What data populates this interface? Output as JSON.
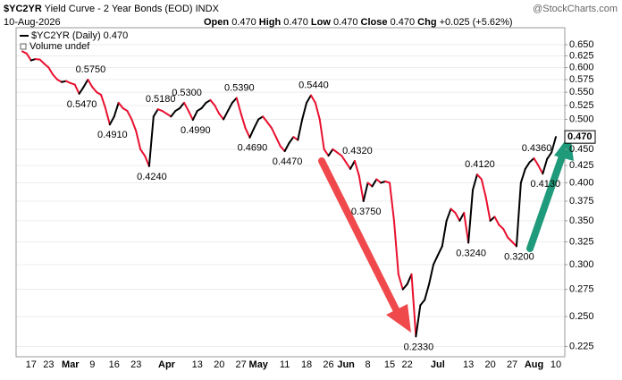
{
  "chart_data": {
    "type": "line",
    "symbol": "$YC2YR",
    "title": "Yield Curve - 2 Year Bonds (EOD)",
    "exchange": "INDX",
    "date": "10-Aug-2026",
    "watermark": "@StockCharts.com",
    "ohlc": [
      {
        "label": "Open",
        "value": "0.470"
      },
      {
        "label": "High",
        "value": "0.470"
      },
      {
        "label": "Low",
        "value": "0.470"
      },
      {
        "label": "Close",
        "value": "0.470"
      },
      {
        "label": "Chg",
        "value": "+0.025 (+5.62%)"
      }
    ],
    "volume_note": "Volume undef",
    "last_value_label": "0.470",
    "log_scale": true,
    "grid": true,
    "ylim": [
      0.217,
      0.69
    ],
    "yticks": [
      {
        "value": 0.225,
        "label": "0.225"
      },
      {
        "value": 0.25,
        "label": "0.250"
      },
      {
        "value": 0.275,
        "label": "0.275"
      },
      {
        "value": 0.3,
        "label": "0.300"
      },
      {
        "value": 0.325,
        "label": "0.325"
      },
      {
        "value": 0.35,
        "label": "0.350"
      },
      {
        "value": 0.375,
        "label": "0.375"
      },
      {
        "value": 0.4,
        "label": "0.400"
      },
      {
        "value": 0.425,
        "label": "0.425"
      },
      {
        "value": 0.45,
        "label": "0.450"
      },
      {
        "value": 0.5,
        "label": "0.500"
      },
      {
        "value": 0.525,
        "label": "0.525"
      },
      {
        "value": 0.55,
        "label": "0.550"
      },
      {
        "value": 0.575,
        "label": "0.575"
      },
      {
        "value": 0.6,
        "label": "0.600"
      },
      {
        "value": 0.625,
        "label": "0.625"
      },
      {
        "value": 0.65,
        "label": "0.650"
      }
    ],
    "categories": [
      null,
      null,
      "17",
      null,
      null,
      null,
      "23",
      null,
      null,
      null,
      null,
      "Mar",
      null,
      null,
      null,
      null,
      "9",
      null,
      null,
      null,
      null,
      "16",
      null,
      null,
      null,
      null,
      "23",
      null,
      null,
      null,
      null,
      null,
      null,
      "Apr",
      null,
      null,
      null,
      null,
      null,
      null,
      "13",
      null,
      null,
      null,
      null,
      "20",
      null,
      null,
      null,
      null,
      "27",
      null,
      null,
      null,
      "May",
      null,
      null,
      null,
      null,
      null,
      "11",
      null,
      null,
      null,
      null,
      "18",
      null,
      null,
      null,
      null,
      "26",
      null,
      null,
      null,
      "Jun",
      null,
      null,
      null,
      null,
      "8",
      null,
      null,
      null,
      null,
      "15",
      null,
      null,
      null,
      "22",
      null,
      null,
      null,
      null,
      null,
      null,
      "Jul",
      null,
      null,
      null,
      null,
      null,
      null,
      "13",
      null,
      null,
      null,
      null,
      "20",
      null,
      null,
      null,
      null,
      "27",
      null,
      null,
      null,
      null,
      "Aug",
      null,
      null,
      null,
      null,
      "10"
    ],
    "series": [
      {
        "name": "$YC2YR (Daily) 0.470",
        "color": "#000000",
        "down_color": "#e8102e",
        "values": [
          0.635,
          0.63,
          0.615,
          0.618,
          0.617,
          0.608,
          0.6,
          0.585,
          0.575,
          0.57,
          0.572,
          0.568,
          0.565,
          0.547,
          0.56,
          0.575,
          0.56,
          0.55,
          0.545,
          0.52,
          0.491,
          0.505,
          0.53,
          0.52,
          0.515,
          0.5,
          0.48,
          0.45,
          0.44,
          0.424,
          0.505,
          0.518,
          0.515,
          0.51,
          0.505,
          0.515,
          0.52,
          0.53,
          0.515,
          0.499,
          0.515,
          0.52,
          0.53,
          0.535,
          0.525,
          0.51,
          0.5,
          0.515,
          0.53,
          0.539,
          0.51,
          0.485,
          0.469,
          0.485,
          0.5,
          0.505,
          0.495,
          0.485,
          0.47,
          0.455,
          0.447,
          0.46,
          0.47,
          0.465,
          0.5,
          0.53,
          0.544,
          0.53,
          0.5,
          0.45,
          0.44,
          0.45,
          0.445,
          0.44,
          0.43,
          0.42,
          0.432,
          0.41,
          0.375,
          0.4,
          0.395,
          0.405,
          0.4,
          0.402,
          0.4,
          0.35,
          0.29,
          0.275,
          0.28,
          0.29,
          0.233,
          0.26,
          0.265,
          0.28,
          0.3,
          0.31,
          0.32,
          0.35,
          0.365,
          0.36,
          0.35,
          0.36,
          0.324,
          0.39,
          0.412,
          0.405,
          0.38,
          0.35,
          0.355,
          0.345,
          0.34,
          0.33,
          0.325,
          0.32,
          0.4,
          0.42,
          0.43,
          0.436,
          0.425,
          0.413,
          0.435,
          0.445,
          0.47
        ],
        "value_labels": [
          null,
          null,
          null,
          null,
          null,
          null,
          null,
          null,
          null,
          null,
          null,
          null,
          null,
          "0.5470",
          null,
          "0.5750",
          null,
          null,
          null,
          null,
          "0.4910",
          null,
          null,
          null,
          null,
          null,
          null,
          null,
          null,
          "0.4240",
          null,
          "0.5180",
          null,
          null,
          null,
          null,
          null,
          "0.5300",
          null,
          "0.4990",
          null,
          null,
          null,
          null,
          null,
          null,
          null,
          null,
          null,
          "0.5390",
          null,
          null,
          "0.4690",
          null,
          null,
          null,
          null,
          null,
          null,
          null,
          "0.4470",
          null,
          null,
          null,
          null,
          null,
          "0.5440",
          null,
          null,
          null,
          null,
          null,
          null,
          null,
          null,
          null,
          "0.4320",
          null,
          "0.3750",
          null,
          null,
          null,
          null,
          null,
          null,
          null,
          null,
          null,
          null,
          null,
          "0.2330",
          null,
          null,
          null,
          null,
          null,
          null,
          null,
          null,
          null,
          null,
          null,
          "0.3240",
          null,
          "0.4120",
          null,
          null,
          null,
          null,
          null,
          null,
          null,
          null,
          "0.3200",
          null,
          null,
          null,
          "0.4360",
          null,
          "0.4130",
          null,
          null,
          null
        ]
      }
    ]
  }
}
